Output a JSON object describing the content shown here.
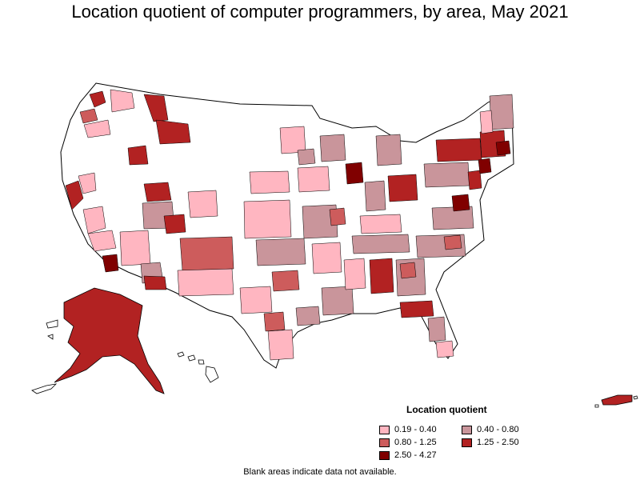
{
  "title": "Location quotient of computer programmers, by area, May 2021",
  "legend": {
    "title": "Location quotient",
    "items": [
      {
        "label": "0.19 - 0.40",
        "color": "#ffb6c1"
      },
      {
        "label": "0.40 - 0.80",
        "color": "#c9959b"
      },
      {
        "label": "0.80 - 1.25",
        "color": "#cd5c5c"
      },
      {
        "label": "1.25 - 2.50",
        "color": "#b22222"
      },
      {
        "label": "2.50 - 4.27",
        "color": "#800000"
      }
    ]
  },
  "footnote": "Blank areas indicate data not available.",
  "colors": {
    "blank": "#ffffff",
    "outline": "#000000"
  }
}
